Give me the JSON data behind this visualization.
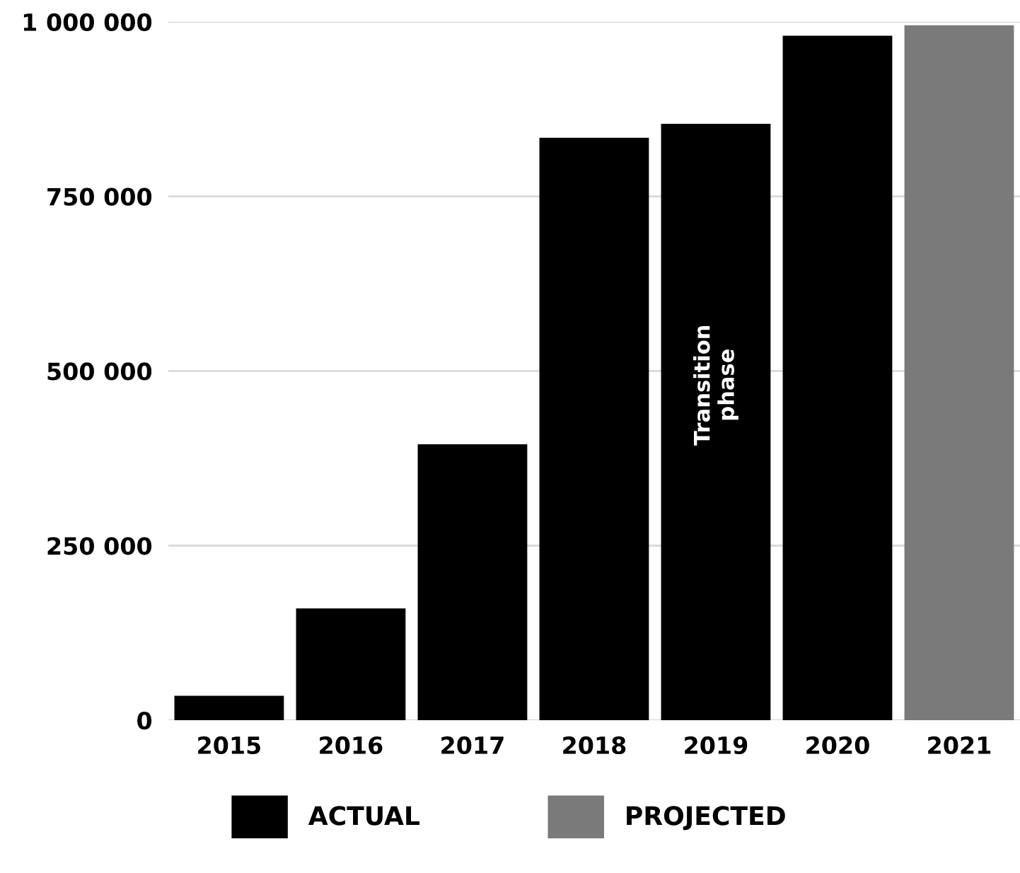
{
  "chart_data": {
    "type": "bar",
    "categories": [
      "2015",
      "2016",
      "2017",
      "2018",
      "2019",
      "2020",
      "2021"
    ],
    "series": [
      {
        "name": "ACTUAL",
        "color": "#000000",
        "values": [
          35000,
          160000,
          395000,
          834000,
          854000,
          980000,
          null
        ]
      },
      {
        "name": "PROJECTED",
        "color": "#7a7a7a",
        "values": [
          null,
          null,
          null,
          null,
          null,
          null,
          995000
        ]
      }
    ],
    "ylim": [
      0,
      1000000
    ],
    "yticks": [
      {
        "value": 0,
        "label": "0"
      },
      {
        "value": 250000,
        "label": "250 000"
      },
      {
        "value": 500000,
        "label": "500 000"
      },
      {
        "value": 750000,
        "label": "750 000"
      },
      {
        "value": 1000000,
        "label": "1 000 000"
      }
    ],
    "grid": "y",
    "legend": "bottom",
    "annotations": [
      "Transition\nphase"
    ]
  }
}
